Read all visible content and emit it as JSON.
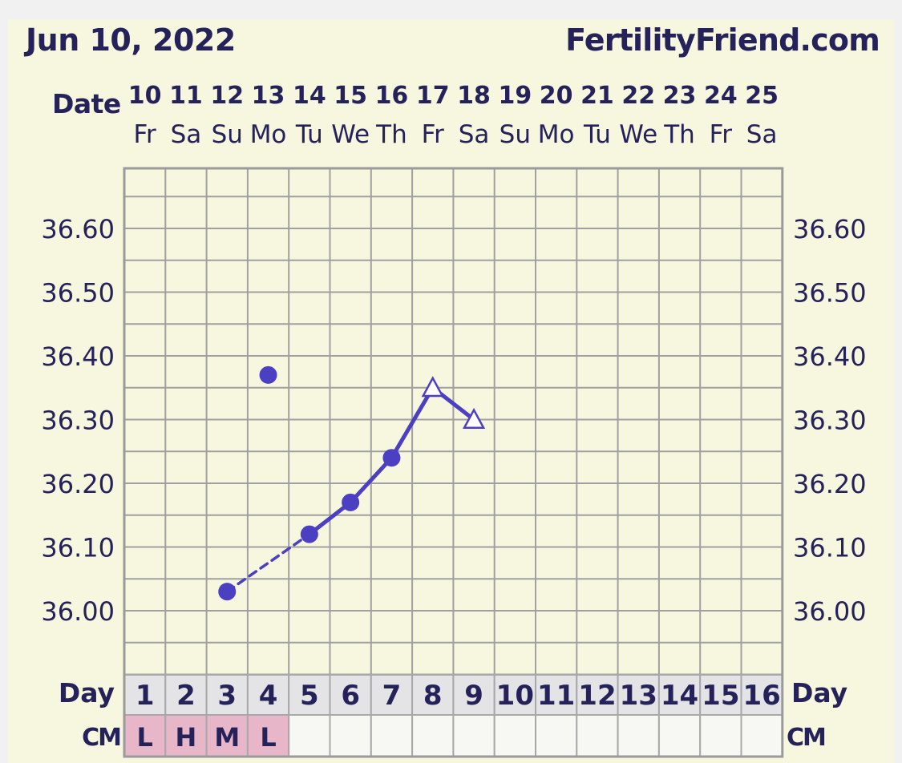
{
  "header": {
    "date": "Jun 10, 2022",
    "site": "FertilityFriend.com",
    "date_row_label": "Date",
    "day_row_label": "Day",
    "cm_row_label": "CM"
  },
  "colors": {
    "series": "#4b3fc2",
    "grid": "#a0a0a0",
    "text": "#25225a",
    "background": "#f7f6df",
    "cm_filled": "#e7b7c9",
    "day_row": "#e4e4e6"
  },
  "chart_data": {
    "type": "line",
    "dates": [
      "10",
      "11",
      "12",
      "13",
      "14",
      "15",
      "16",
      "17",
      "18",
      "19",
      "20",
      "21",
      "22",
      "23",
      "24",
      "25"
    ],
    "weekdays": [
      "Fr",
      "Sa",
      "Su",
      "Mo",
      "Tu",
      "We",
      "Th",
      "Fr",
      "Sa",
      "Su",
      "Mo",
      "Tu",
      "We",
      "Th",
      "Fr",
      "Sa"
    ],
    "cycle_days": [
      "1",
      "2",
      "3",
      "4",
      "5",
      "6",
      "7",
      "8",
      "9",
      "10",
      "11",
      "12",
      "13",
      "14",
      "15",
      "16"
    ],
    "y_ticks": [
      "36.60",
      "36.50",
      "36.40",
      "36.30",
      "36.20",
      "36.10",
      "36.00"
    ],
    "ylim": [
      35.9,
      36.68
    ],
    "ystep": 0.05,
    "grid": true,
    "temperatures": [
      {
        "day": 3,
        "value": 36.03,
        "marker": "dot"
      },
      {
        "day": 4,
        "value": 36.37,
        "marker": "dot",
        "excluded": true
      },
      {
        "day": 5,
        "value": 36.12,
        "marker": "dot"
      },
      {
        "day": 6,
        "value": 36.17,
        "marker": "dot"
      },
      {
        "day": 7,
        "value": 36.24,
        "marker": "dot"
      },
      {
        "day": 8,
        "value": 36.35,
        "marker": "triangle"
      },
      {
        "day": 9,
        "value": 36.3,
        "marker": "triangle"
      }
    ],
    "connections": [
      {
        "from": 3,
        "to": 5,
        "style": "dashed"
      },
      {
        "from": 5,
        "to": 6,
        "style": "solid"
      },
      {
        "from": 6,
        "to": 7,
        "style": "solid"
      },
      {
        "from": 7,
        "to": 8,
        "style": "solid"
      },
      {
        "from": 8,
        "to": 9,
        "style": "solid"
      }
    ],
    "cervical_mucus": [
      "L",
      "H",
      "M",
      "L",
      "",
      "",
      "",
      "",
      "",
      "",
      "",
      "",
      "",
      "",
      "",
      ""
    ]
  }
}
